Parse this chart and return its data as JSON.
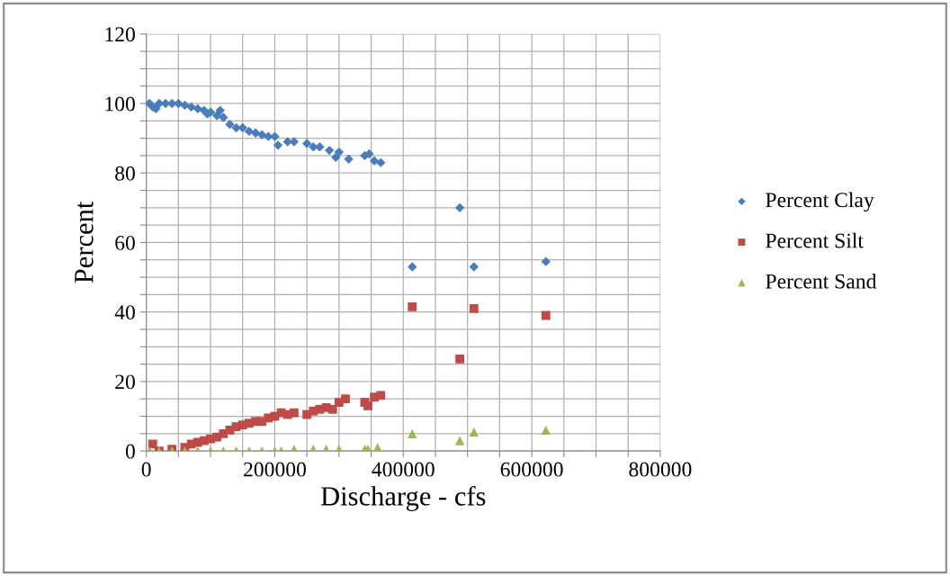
{
  "chart_data": {
    "type": "scatter",
    "xlabel": "Discharge - cfs",
    "ylabel": "Percent",
    "xlim": [
      0,
      800000
    ],
    "ylim": [
      0,
      120
    ],
    "xticks": [
      0,
      {
        "value": 50000,
        "label": null
      },
      {
        "value": 100000,
        "label": null
      },
      {
        "value": 150000,
        "label": null
      },
      200000,
      {
        "value": 250000,
        "label": null
      },
      {
        "value": 300000,
        "label": null
      },
      {
        "value": 350000,
        "label": null
      },
      400000,
      {
        "value": 450000,
        "label": null
      },
      {
        "value": 500000,
        "label": null
      },
      {
        "value": 550000,
        "label": null
      },
      600000,
      {
        "value": 650000,
        "label": null
      },
      {
        "value": 700000,
        "label": null
      },
      {
        "value": 750000,
        "label": null
      },
      800000
    ],
    "yticks": [
      0,
      {
        "value": 5,
        "label": null
      },
      {
        "value": 10,
        "label": null
      },
      {
        "value": 15,
        "label": null
      },
      20,
      {
        "value": 25,
        "label": null
      },
      {
        "value": 30,
        "label": null
      },
      {
        "value": 35,
        "label": null
      },
      40,
      {
        "value": 45,
        "label": null
      },
      {
        "value": 50,
        "label": null
      },
      {
        "value": 55,
        "label": null
      },
      60,
      {
        "value": 65,
        "label": null
      },
      {
        "value": 70,
        "label": null
      },
      {
        "value": 75,
        "label": null
      },
      80,
      {
        "value": 85,
        "label": null
      },
      {
        "value": 90,
        "label": null
      },
      {
        "value": 95,
        "label": null
      },
      100,
      {
        "value": 105,
        "label": null
      },
      {
        "value": 110,
        "label": null
      },
      {
        "value": 115,
        "label": null
      },
      120
    ],
    "grid": true,
    "legend": "right",
    "series": [
      {
        "name": "Percent Clay",
        "color": "#4a7ebb",
        "marker": "diamond",
        "x": [
          5000,
          10000,
          15000,
          20000,
          30000,
          40000,
          50000,
          60000,
          70000,
          80000,
          90000,
          95000,
          100000,
          110000,
          115000,
          120000,
          130000,
          140000,
          150000,
          160000,
          170000,
          180000,
          190000,
          200000,
          205000,
          220000,
          230000,
          250000,
          260000,
          270000,
          285000,
          295000,
          300000,
          315000,
          340000,
          347000,
          355000,
          365000,
          414000,
          488000,
          510000,
          622000
        ],
        "values": [
          100,
          99,
          98.5,
          100,
          100,
          100,
          100,
          99.5,
          99,
          98.5,
          98,
          97,
          97.5,
          96.5,
          98,
          96,
          94,
          93,
          93,
          92,
          91.5,
          91,
          90.5,
          90.5,
          88,
          89,
          89,
          88.5,
          87.5,
          87.5,
          86.5,
          84.5,
          86,
          84,
          85,
          85.5,
          83.5,
          83,
          53,
          70,
          53,
          54.5
        ]
      },
      {
        "name": "Percent Silt",
        "color": "#be4b48",
        "marker": "square",
        "x": [
          10000,
          20000,
          40000,
          60000,
          70000,
          80000,
          90000,
          100000,
          110000,
          120000,
          130000,
          140000,
          150000,
          160000,
          170000,
          180000,
          190000,
          200000,
          210000,
          220000,
          230000,
          250000,
          260000,
          270000,
          280000,
          290000,
          300000,
          310000,
          340000,
          345000,
          355000,
          365000,
          414000,
          488000,
          510000,
          622000
        ],
        "values": [
          2,
          0,
          0.5,
          1,
          2,
          2.5,
          3,
          3.5,
          4,
          5,
          6,
          7,
          7.5,
          8,
          8.5,
          8.5,
          9.5,
          10,
          11,
          10.5,
          11,
          10.5,
          11.5,
          12,
          12.5,
          12,
          14,
          15,
          14,
          13,
          15.5,
          16,
          41.5,
          26.5,
          41,
          39
        ]
      },
      {
        "name": "Percent Sand",
        "color": "#98b954",
        "marker": "triangle",
        "x": [
          5000,
          20000,
          40000,
          60000,
          80000,
          100000,
          120000,
          140000,
          160000,
          180000,
          200000,
          210000,
          230000,
          260000,
          280000,
          300000,
          340000,
          345000,
          360000,
          414000,
          488000,
          510000,
          622000
        ],
        "values": [
          0,
          0,
          0,
          0,
          0,
          0,
          0,
          0,
          0,
          0,
          0,
          0,
          0.5,
          0.5,
          0.5,
          0.5,
          0.5,
          0.5,
          1,
          5,
          3,
          5.5,
          6
        ]
      }
    ]
  }
}
